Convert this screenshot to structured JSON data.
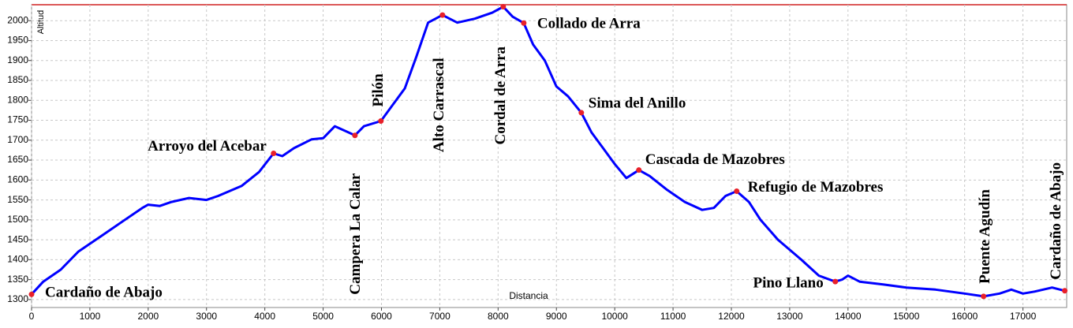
{
  "chart_data": {
    "type": "line",
    "y_label": "Altitud",
    "x_label": "Distancia",
    "x": [
      0,
      200,
      500,
      800,
      1200,
      1600,
      1900,
      2000,
      2200,
      2400,
      2700,
      3000,
      3200,
      3600,
      3900,
      4150,
      4300,
      4500,
      4800,
      5000,
      5200,
      5400,
      5545,
      5700,
      5990,
      6200,
      6400,
      6600,
      6800,
      7046,
      7300,
      7600,
      7900,
      8088,
      8250,
      8440,
      8600,
      8800,
      9000,
      9200,
      9427,
      9600,
      9800,
      10000,
      10200,
      10414,
      10600,
      10900,
      11200,
      11500,
      11700,
      11900,
      12091,
      12300,
      12500,
      12800,
      13200,
      13500,
      13782,
      13900,
      14000,
      14200,
      14600,
      15000,
      15500,
      16000,
      16325,
      16600,
      16800,
      17000,
      17200,
      17500,
      17717
    ],
    "series": [
      {
        "color": "#0000ff",
        "values": [
          1313,
          1345,
          1375,
          1420,
          1460,
          1500,
          1530,
          1538,
          1535,
          1545,
          1555,
          1550,
          1560,
          1585,
          1620,
          1667,
          1660,
          1680,
          1702,
          1705,
          1735,
          1722,
          1712,
          1735,
          1748,
          1790,
          1830,
          1910,
          1995,
          2014,
          1995,
          2005,
          2020,
          2035,
          2010,
          1994,
          1940,
          1900,
          1835,
          1810,
          1769,
          1720,
          1680,
          1640,
          1605,
          1625,
          1610,
          1575,
          1545,
          1525,
          1530,
          1560,
          1572,
          1545,
          1500,
          1450,
          1400,
          1360,
          1345,
          1350,
          1360,
          1345,
          1338,
          1330,
          1325,
          1315,
          1308,
          1315,
          1325,
          1315,
          1320,
          1330,
          1322
        ]
      }
    ],
    "waypoints": [
      {
        "label": "Cardaño de Abajo",
        "x": 0,
        "y": 1313
      },
      {
        "label": "Arroyo del Acebar",
        "x": 4150,
        "y": 1667
      },
      {
        "label": "Campera La Calar",
        "x": 5545,
        "y": 1712
      },
      {
        "label": "Pilón",
        "x": 5990,
        "y": 1748
      },
      {
        "label": "Alto Carrascal",
        "x": 7046,
        "y": 2014
      },
      {
        "label": "Cordal de Arra",
        "x": 8088,
        "y": 2035
      },
      {
        "label": "Collado de Arra",
        "x": 8440,
        "y": 1994
      },
      {
        "label": "Sima del Anillo",
        "x": 9427,
        "y": 1769
      },
      {
        "label": "Cascada de Mazobres",
        "x": 10414,
        "y": 1625
      },
      {
        "label": "Refugio de Mazobres",
        "x": 12091,
        "y": 1572
      },
      {
        "label": "Pino Llano",
        "x": 13782,
        "y": 1345
      },
      {
        "label": "Puente Agudín",
        "x": 16325,
        "y": 1308
      },
      {
        "label": "Cardaño de Abajo",
        "x": 17717,
        "y": 1322
      }
    ],
    "waypoint_color": "#e8202a",
    "xlim": [
      0,
      17750
    ],
    "ylim": [
      1280,
      2040
    ],
    "xticks": [
      0,
      1000,
      2000,
      3000,
      4000,
      5000,
      6000,
      7000,
      8000,
      9000,
      10000,
      11000,
      12000,
      13000,
      14000,
      15000,
      16000,
      17000
    ],
    "yticks": [
      1300,
      1350,
      1400,
      1450,
      1500,
      1550,
      1600,
      1650,
      1700,
      1750,
      1800,
      1850,
      1900,
      1950,
      2000
    ],
    "grid": true
  }
}
